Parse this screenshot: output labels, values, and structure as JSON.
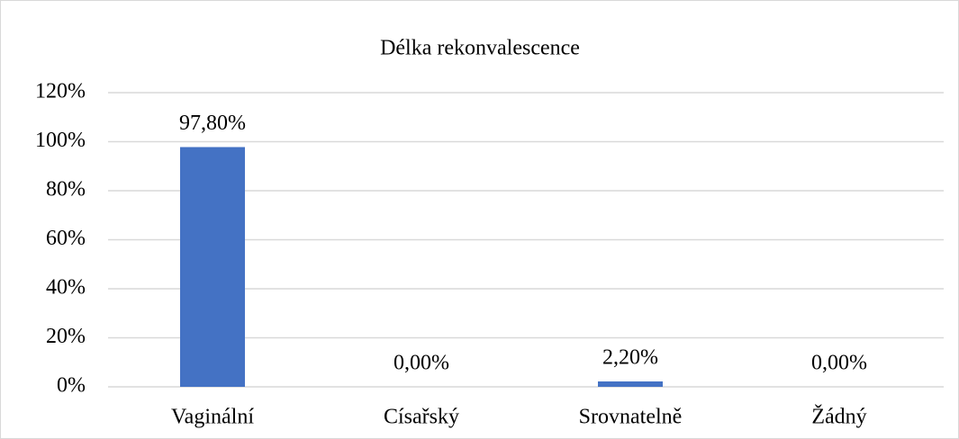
{
  "chart_data": {
    "type": "bar",
    "title": "Délka rekonvalescence",
    "categories": [
      "Vaginální",
      "Císařský",
      "Srovnatelně",
      "Žádný"
    ],
    "values": [
      97.8,
      0,
      2.2,
      0
    ],
    "value_labels": [
      "97,80%",
      "0,00%",
      "2,20%",
      "0,00%"
    ],
    "color": "#4472c4",
    "ylim": [
      0,
      120
    ],
    "yticks": [
      {
        "value": 0,
        "label": "0%"
      },
      {
        "value": 20,
        "label": "20%"
      },
      {
        "value": 40,
        "label": "40%"
      },
      {
        "value": 60,
        "label": "60%"
      },
      {
        "value": 80,
        "label": "80%"
      },
      {
        "value": 100,
        "label": "100%"
      },
      {
        "value": 120,
        "label": "120%"
      }
    ],
    "grid": true
  }
}
